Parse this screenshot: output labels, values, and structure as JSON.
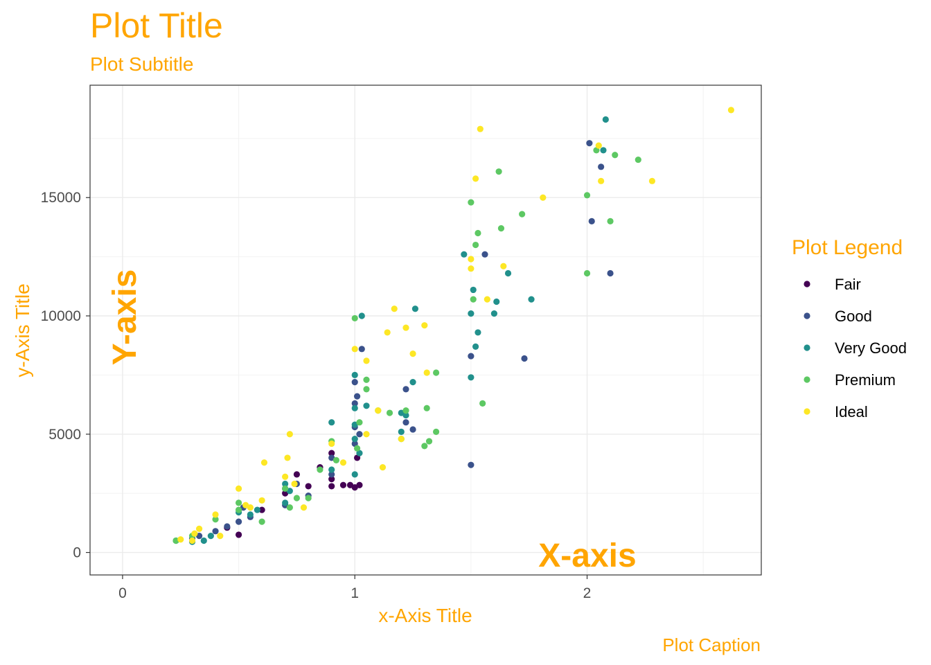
{
  "chart_data": {
    "type": "scatter",
    "title": "Plot Title",
    "subtitle": "Plot Subtitle",
    "caption": "Plot Caption",
    "xlabel": "x-Axis Title",
    "ylabel": "y-Axis Title",
    "annotations": {
      "x": "X-axis",
      "y": "Y-axis"
    },
    "xlim": [
      -0.14,
      2.75
    ],
    "ylim": [
      -950,
      19750
    ],
    "x_ticks": [
      0,
      1,
      2
    ],
    "y_ticks": [
      0,
      5000,
      10000,
      15000
    ],
    "x_tick_labels": [
      "0",
      "1",
      "2"
    ],
    "y_tick_labels": [
      "0",
      "5000",
      "10000",
      "15000"
    ],
    "grid": true,
    "legend": {
      "title": "Plot Legend",
      "position": "right"
    },
    "colors": {
      "text_accent": "#FFA500"
    },
    "series": [
      {
        "name": "Fair",
        "color": "#440154",
        "points": [
          [
            0.45,
            1050
          ],
          [
            0.5,
            750
          ],
          [
            0.6,
            1800
          ],
          [
            0.7,
            2500
          ],
          [
            0.75,
            3300
          ],
          [
            0.8,
            2800
          ],
          [
            0.85,
            3600
          ],
          [
            0.9,
            3100
          ],
          [
            0.9,
            2800
          ],
          [
            0.95,
            2850
          ],
          [
            0.98,
            2850
          ],
          [
            1.0,
            2750
          ],
          [
            1.02,
            2850
          ],
          [
            1.01,
            4000
          ],
          [
            0.9,
            4200
          ]
        ]
      },
      {
        "name": "Good",
        "color": "#3B528B",
        "points": [
          [
            0.3,
            600
          ],
          [
            0.33,
            700
          ],
          [
            0.4,
            900
          ],
          [
            0.45,
            1100
          ],
          [
            0.5,
            1300
          ],
          [
            0.52,
            1900
          ],
          [
            0.55,
            1500
          ],
          [
            0.7,
            2000
          ],
          [
            0.7,
            2700
          ],
          [
            0.75,
            2900
          ],
          [
            0.8,
            2400
          ],
          [
            0.9,
            3300
          ],
          [
            0.9,
            4000
          ],
          [
            1.0,
            4600
          ],
          [
            1.0,
            5300
          ],
          [
            1.0,
            6300
          ],
          [
            1.0,
            7200
          ],
          [
            1.01,
            6600
          ],
          [
            1.02,
            5000
          ],
          [
            1.03,
            8600
          ],
          [
            1.22,
            5500
          ],
          [
            1.22,
            6900
          ],
          [
            1.25,
            5200
          ],
          [
            1.5,
            8300
          ],
          [
            1.5,
            3700
          ],
          [
            1.56,
            12600
          ],
          [
            1.73,
            8200
          ],
          [
            2.01,
            17300
          ],
          [
            2.02,
            14000
          ],
          [
            2.06,
            16300
          ],
          [
            2.1,
            11800
          ]
        ]
      },
      {
        "name": "Very Good",
        "color": "#21908C",
        "points": [
          [
            0.23,
            500
          ],
          [
            0.3,
            450
          ],
          [
            0.35,
            500
          ],
          [
            0.38,
            700
          ],
          [
            0.5,
            1700
          ],
          [
            0.55,
            1600
          ],
          [
            0.58,
            1800
          ],
          [
            0.7,
            2900
          ],
          [
            0.7,
            2100
          ],
          [
            0.72,
            2600
          ],
          [
            0.9,
            5500
          ],
          [
            0.9,
            3500
          ],
          [
            1.0,
            3300
          ],
          [
            1.0,
            4800
          ],
          [
            1.0,
            5400
          ],
          [
            1.0,
            6100
          ],
          [
            1.0,
            7500
          ],
          [
            1.02,
            4200
          ],
          [
            1.03,
            10000
          ],
          [
            1.05,
            6200
          ],
          [
            1.2,
            5900
          ],
          [
            1.2,
            5100
          ],
          [
            1.22,
            5800
          ],
          [
            1.25,
            7200
          ],
          [
            1.26,
            10300
          ],
          [
            1.47,
            12600
          ],
          [
            1.5,
            10100
          ],
          [
            1.5,
            7400
          ],
          [
            1.51,
            11100
          ],
          [
            1.52,
            8700
          ],
          [
            1.53,
            9300
          ],
          [
            1.6,
            10100
          ],
          [
            1.61,
            10600
          ],
          [
            1.66,
            11800
          ],
          [
            1.76,
            10700
          ],
          [
            2.07,
            17000
          ],
          [
            2.08,
            18300
          ]
        ]
      },
      {
        "name": "Premium",
        "color": "#5DC863",
        "points": [
          [
            0.23,
            500
          ],
          [
            0.3,
            700
          ],
          [
            0.4,
            1400
          ],
          [
            0.5,
            1800
          ],
          [
            0.5,
            2100
          ],
          [
            0.6,
            1300
          ],
          [
            0.7,
            2700
          ],
          [
            0.72,
            1900
          ],
          [
            0.75,
            2300
          ],
          [
            0.8,
            2300
          ],
          [
            0.85,
            3500
          ],
          [
            0.9,
            4700
          ],
          [
            0.92,
            3900
          ],
          [
            1.0,
            9900
          ],
          [
            1.01,
            4400
          ],
          [
            1.02,
            5500
          ],
          [
            1.05,
            6900
          ],
          [
            1.05,
            7300
          ],
          [
            1.1,
            6000
          ],
          [
            1.15,
            5900
          ],
          [
            1.2,
            4800
          ],
          [
            1.22,
            6000
          ],
          [
            1.3,
            4500
          ],
          [
            1.31,
            6100
          ],
          [
            1.32,
            4700
          ],
          [
            1.35,
            5100
          ],
          [
            1.35,
            7600
          ],
          [
            1.5,
            14800
          ],
          [
            1.51,
            10700
          ],
          [
            1.52,
            13000
          ],
          [
            1.53,
            13500
          ],
          [
            1.55,
            6300
          ],
          [
            1.62,
            16100
          ],
          [
            1.63,
            13700
          ],
          [
            1.72,
            14300
          ],
          [
            2.0,
            15100
          ],
          [
            2.0,
            11800
          ],
          [
            2.04,
            17000
          ],
          [
            2.1,
            14000
          ],
          [
            2.12,
            16800
          ],
          [
            2.22,
            16600
          ]
        ]
      },
      {
        "name": "Ideal",
        "color": "#FDE725",
        "points": [
          [
            0.25,
            550
          ],
          [
            0.3,
            500
          ],
          [
            0.31,
            800
          ],
          [
            0.33,
            1000
          ],
          [
            0.4,
            1600
          ],
          [
            0.42,
            700
          ],
          [
            0.5,
            2700
          ],
          [
            0.53,
            2000
          ],
          [
            0.55,
            1900
          ],
          [
            0.6,
            2200
          ],
          [
            0.61,
            3800
          ],
          [
            0.7,
            3200
          ],
          [
            0.71,
            4000
          ],
          [
            0.72,
            5000
          ],
          [
            0.74,
            2900
          ],
          [
            0.78,
            1900
          ],
          [
            0.9,
            4600
          ],
          [
            0.95,
            3800
          ],
          [
            1.0,
            8600
          ],
          [
            1.05,
            8100
          ],
          [
            1.05,
            5000
          ],
          [
            1.1,
            6000
          ],
          [
            1.12,
            3600
          ],
          [
            1.14,
            9300
          ],
          [
            1.17,
            10300
          ],
          [
            1.2,
            4800
          ],
          [
            1.22,
            9500
          ],
          [
            1.25,
            8400
          ],
          [
            1.3,
            9600
          ],
          [
            1.31,
            7600
          ],
          [
            1.5,
            12000
          ],
          [
            1.5,
            12400
          ],
          [
            1.52,
            15800
          ],
          [
            1.54,
            17900
          ],
          [
            1.57,
            10700
          ],
          [
            1.64,
            12100
          ],
          [
            1.81,
            15000
          ],
          [
            2.05,
            17200
          ],
          [
            2.06,
            15700
          ],
          [
            2.28,
            15700
          ],
          [
            2.62,
            18700
          ]
        ]
      }
    ]
  }
}
